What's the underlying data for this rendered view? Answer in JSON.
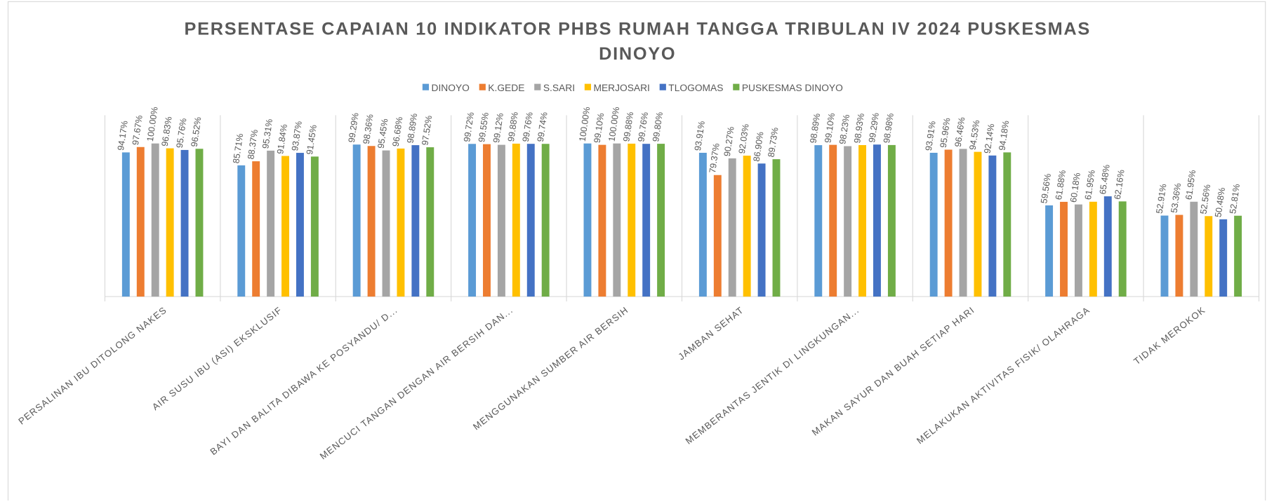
{
  "chart_data": {
    "type": "bar",
    "title": "PERSENTASE CAPAIAN 10 INDIKATOR PHBS RUMAH TANGGA TRIBULAN IV 2024 PUSKESMAS DINOYO",
    "categories": [
      "PERSALINAN IBU DITOLONG NAKES",
      "AIR SUSU IBU (ASI) EKSKLUSIF",
      "BAYI DAN BALITA DIBAWA KE POSYANDU/ D...",
      "MENCUCI TANGAN DENGAN AIR BERSIH DAN...",
      "MENGGUNAKAN SUMBER AIR BERSIH",
      "JAMBAN SEHAT",
      "MEMBERANTAS JENTIK DI LINGKUNGAN...",
      "MAKAN SAYUR DAN BUAH SETIAP HARI",
      "MELAKUKAN AKTIVITAS FISIK/ OLAHRAGA",
      "TIDAK MEROKOK"
    ],
    "series": [
      {
        "name": "DINOYO",
        "color": "#5b9bd5",
        "values": [
          94.17,
          85.71,
          99.29,
          99.72,
          100.0,
          93.91,
          98.89,
          93.91,
          59.56,
          52.91
        ],
        "value_labels": [
          "94.17%",
          "85.71%",
          "99.29%",
          "99.72%",
          "100.00%",
          "93.91%",
          "98.89%",
          "93.91%",
          "59.56%",
          "52.91%"
        ]
      },
      {
        "name": "K.GEDE",
        "color": "#ed7d31",
        "values": [
          97.67,
          88.37,
          98.36,
          99.55,
          99.1,
          79.37,
          99.1,
          95.96,
          61.88,
          53.36
        ],
        "value_labels": [
          "97.67%",
          "88.37%",
          "98.36%",
          "99.55%",
          "99.10%",
          "79.37%",
          "99.10%",
          "95.96%",
          "61.88%",
          "53.36%"
        ]
      },
      {
        "name": "S.SARI",
        "color": "#a5a5a5",
        "values": [
          100.0,
          95.31,
          95.45,
          99.12,
          100.0,
          90.27,
          98.23,
          96.46,
          60.18,
          61.95
        ],
        "value_labels": [
          "100.00%",
          "95.31%",
          "95.45%",
          "99.12%",
          "100.00%",
          "90.27%",
          "98.23%",
          "96.46%",
          "60.18%",
          "61.95%"
        ]
      },
      {
        "name": "MERJOSARI",
        "color": "#ffc000",
        "values": [
          96.83,
          91.84,
          96.68,
          99.88,
          99.88,
          92.03,
          98.93,
          94.53,
          61.95,
          52.56
        ],
        "value_labels": [
          "96.83%",
          "91.84%",
          "96.68%",
          "99.88%",
          "99.88%",
          "92.03%",
          "98.93%",
          "94.53%",
          "61.95%",
          "52.56%"
        ]
      },
      {
        "name": "TLOGOMAS",
        "color": "#4472c4",
        "values": [
          95.76,
          93.87,
          98.89,
          99.76,
          99.76,
          86.9,
          99.29,
          92.14,
          65.48,
          50.48
        ],
        "value_labels": [
          "95.76%",
          "93.87%",
          "98.89%",
          "99.76%",
          "99.76%",
          "86.90%",
          "99.29%",
          "92.14%",
          "65.48%",
          "50.48%"
        ]
      },
      {
        "name": "PUSKESMAS DINOYO",
        "color": "#70ad47",
        "values": [
          96.52,
          91.45,
          97.52,
          99.74,
          99.8,
          89.73,
          98.98,
          94.18,
          62.16,
          52.81
        ],
        "value_labels": [
          "96.52%",
          "91.45%",
          "97.52%",
          "99.74%",
          "99.80%",
          "89.73%",
          "98.98%",
          "94.18%",
          "62.16%",
          "52.81%"
        ]
      }
    ],
    "ylim": [
      0,
      120
    ],
    "legend": "top"
  }
}
